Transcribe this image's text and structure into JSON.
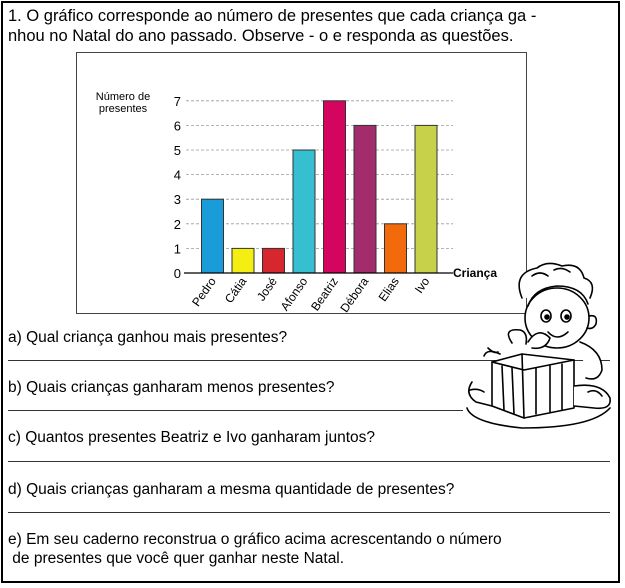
{
  "intro": {
    "line1": "1. O gráfico corresponde ao número de presentes que cada criança  ga -",
    "line2": "nhou no Natal do ano passado. Observe - o e responda as questões."
  },
  "chart_data": {
    "type": "bar",
    "categories": [
      "Pedro",
      "Cátia",
      "José",
      "Afonso",
      "Beatriz",
      "Débora",
      "Elias",
      "Ivo"
    ],
    "values": [
      3,
      1,
      1,
      5,
      7,
      6,
      2,
      6
    ],
    "colors": [
      "#1a9cd8",
      "#f5ee12",
      "#d6262e",
      "#36bfd0",
      "#d4055e",
      "#a22d6a",
      "#f36a0c",
      "#c7d14a"
    ],
    "yticks": [
      0,
      1,
      2,
      3,
      4,
      5,
      6,
      7
    ],
    "ylim": [
      0,
      7
    ],
    "ylabel_line1": "Número de",
    "ylabel_line2": "presentes",
    "xlabel": "Criança",
    "grid": "dashed-horizontal"
  },
  "questions": {
    "a": "a) Qual criança ganhou mais presentes?",
    "b": "b) Quais crianças ganharam  menos presentes?",
    "c": "c) Quantos presentes Beatriz e Ivo ganharam juntos?",
    "d": "d) Quais crianças ganharam a mesma quantidade de presentes?",
    "e_line1": "e) Em seu caderno reconstrua o gráfico acima acrescentando o número",
    "e_line2": " de presentes que você quer ganhar neste Natal."
  },
  "illustration": {
    "icon": "boy-with-gift-icon"
  }
}
